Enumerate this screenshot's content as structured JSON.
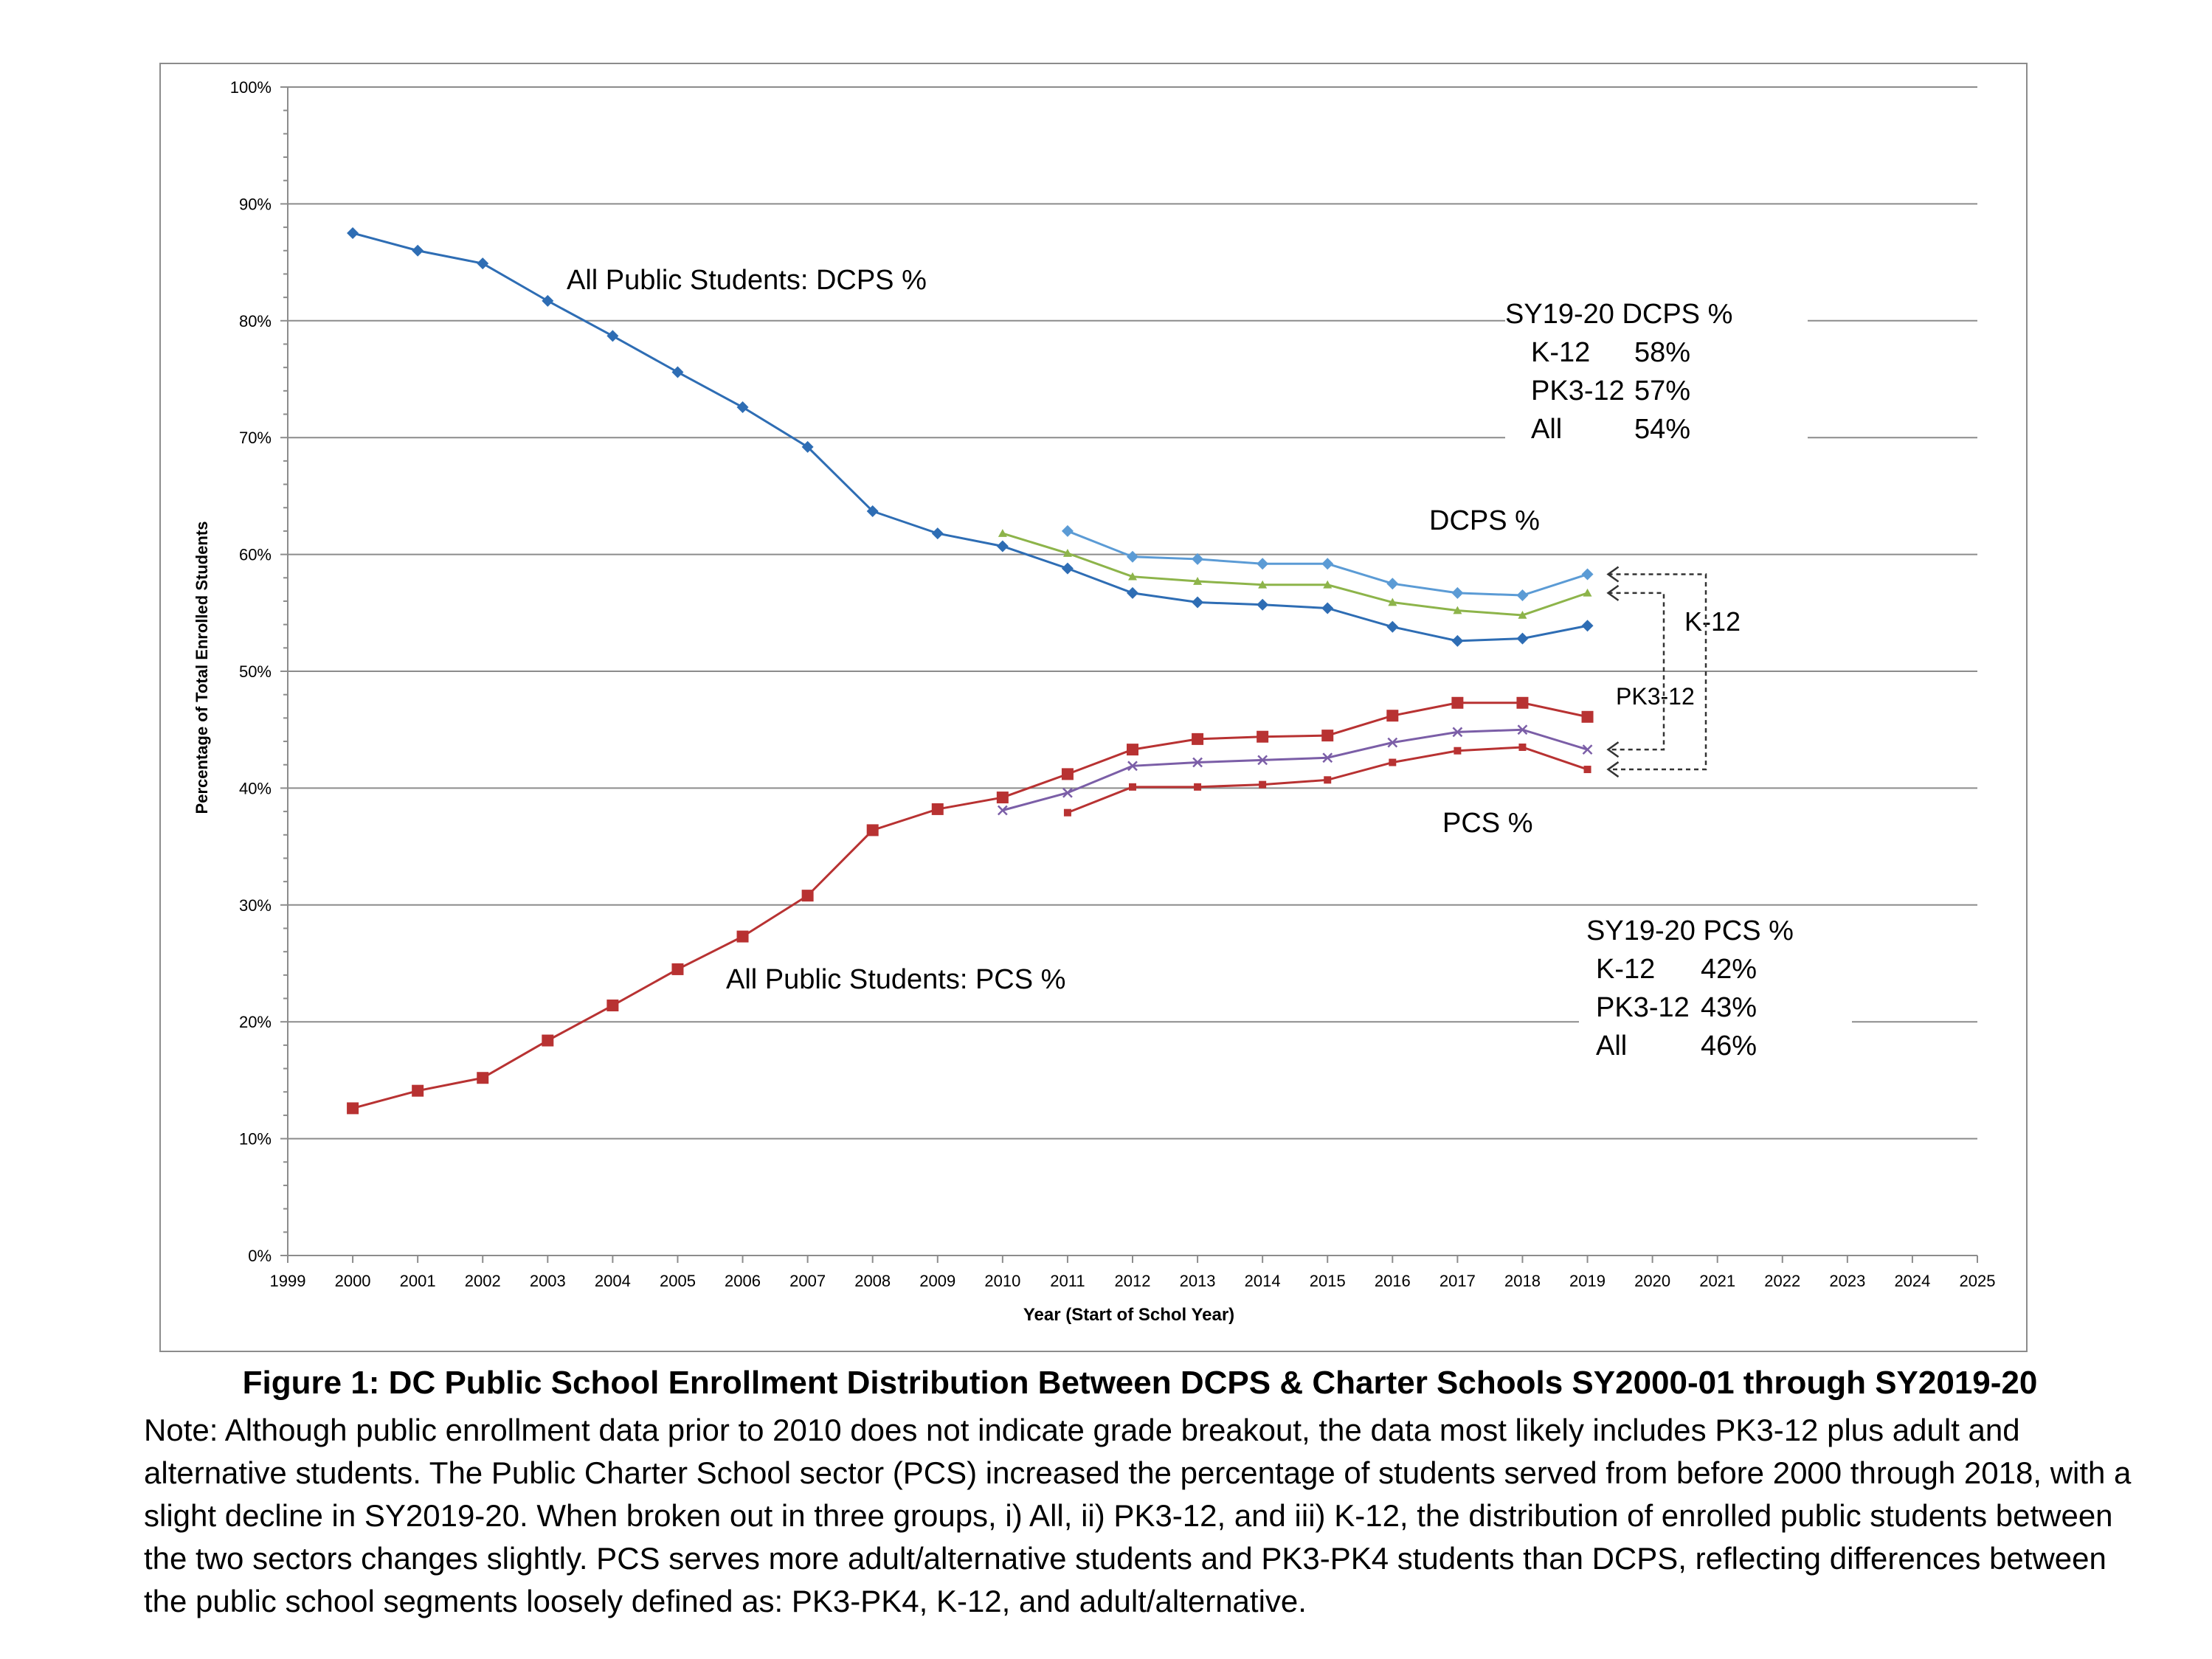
{
  "chart_data": {
    "type": "line",
    "xlabel": "Year (Start of Schol Year)",
    "ylabel": "Percentage of Total Enrolled Students",
    "xlim": [
      1999,
      2025
    ],
    "ylim": [
      0,
      100
    ],
    "x_ticks": [
      1999,
      2000,
      2001,
      2002,
      2003,
      2004,
      2005,
      2006,
      2007,
      2008,
      2009,
      2010,
      2011,
      2012,
      2013,
      2014,
      2015,
      2016,
      2017,
      2018,
      2019,
      2020,
      2021,
      2022,
      2023,
      2024,
      2025
    ],
    "y_ticks": [
      "0%",
      "10%",
      "20%",
      "30%",
      "40%",
      "50%",
      "60%",
      "70%",
      "80%",
      "90%",
      "100%"
    ],
    "grid": true,
    "series": [
      {
        "name": "DCPS All",
        "color": "#2e6db4",
        "marker": "diamond",
        "x": [
          2000,
          2001,
          2002,
          2003,
          2004,
          2005,
          2006,
          2007,
          2008,
          2009,
          2010,
          2011,
          2012,
          2013,
          2014,
          2015,
          2016,
          2017,
          2018,
          2019
        ],
        "values": [
          87.5,
          86,
          84.9,
          81.7,
          78.7,
          75.6,
          72.6,
          69.2,
          63.7,
          61.8,
          60.7,
          58.8,
          56.7,
          55.9,
          55.7,
          55.4,
          53.8,
          52.6,
          52.8,
          53.9
        ]
      },
      {
        "name": "DCPS PK3-12",
        "color": "#8db44a",
        "marker": "triangle",
        "x": [
          2010,
          2011,
          2012,
          2013,
          2014,
          2015,
          2016,
          2017,
          2018,
          2019
        ],
        "values": [
          61.8,
          60.1,
          58.1,
          57.7,
          57.4,
          57.4,
          55.9,
          55.2,
          54.8,
          56.7
        ]
      },
      {
        "name": "DCPS K-12",
        "color": "#5b9bd5",
        "marker": "diamond",
        "x": [
          2011,
          2012,
          2013,
          2014,
          2015,
          2016,
          2017,
          2018,
          2019
        ],
        "values": [
          62.0,
          59.8,
          59.6,
          59.2,
          59.2,
          57.5,
          56.7,
          56.5,
          58.3
        ]
      },
      {
        "name": "PCS All",
        "color": "#b83232",
        "marker": "square",
        "x": [
          2000,
          2001,
          2002,
          2003,
          2004,
          2005,
          2006,
          2007,
          2008,
          2009,
          2010,
          2011,
          2012,
          2013,
          2014,
          2015,
          2016,
          2017,
          2018,
          2019
        ],
        "values": [
          12.6,
          14.1,
          15.2,
          18.4,
          21.4,
          24.5,
          27.3,
          30.8,
          36.4,
          38.2,
          39.2,
          41.2,
          43.3,
          44.2,
          44.4,
          44.5,
          46.2,
          47.3,
          47.3,
          46.1
        ]
      },
      {
        "name": "PCS PK3-12",
        "color": "#7b5ea7",
        "marker": "x",
        "x": [
          2010,
          2011,
          2012,
          2013,
          2014,
          2015,
          2016,
          2017,
          2018,
          2019
        ],
        "values": [
          38.1,
          39.6,
          41.9,
          42.2,
          42.4,
          42.6,
          43.9,
          44.8,
          45.0,
          43.3
        ]
      },
      {
        "name": "PCS K-12",
        "color": "#b83232",
        "marker": "small-square",
        "x": [
          2011,
          2012,
          2013,
          2014,
          2015,
          2016,
          2017,
          2018,
          2019
        ],
        "values": [
          37.9,
          40.1,
          40.1,
          40.3,
          40.7,
          42.2,
          43.2,
          43.5,
          41.6
        ]
      }
    ],
    "annotations": {
      "dcps_all_label": "All Public Students: DCPS %",
      "pcs_all_label": "All Public Students: PCS %",
      "dcps_label": "DCPS %",
      "pcs_label": "PCS %",
      "k12_bracket": "K-12",
      "pk312_bracket": "PK3-12",
      "dcps_box": {
        "title": "SY19-20 DCPS %",
        "rows": [
          {
            "group": "K-12",
            "value": "58%"
          },
          {
            "group": "PK3-12",
            "value": "57%"
          },
          {
            "group": "All",
            "value": "54%"
          }
        ]
      },
      "pcs_box": {
        "title": "SY19-20 PCS %",
        "rows": [
          {
            "group": "K-12",
            "value": "42%"
          },
          {
            "group": "PK3-12",
            "value": "43%"
          },
          {
            "group": "All",
            "value": "46%"
          }
        ]
      }
    }
  },
  "caption": {
    "title": "Figure 1: DC Public School Enrollment Distribution Between DCPS & Charter Schools SY2000-01 through SY2019-20",
    "note": "Note: Although public enrollment data prior to 2010 does not indicate grade breakout, the data most likely includes PK3-12 plus adult and alternative students.  The Public Charter School sector (PCS) increased the percentage of students served from before 2000 through 2018, with a slight decline in SY2019-20.  When broken out in three groups, i) All, ii) PK3-12, and iii) K-12, the distribution of enrolled public students between the two sectors changes slightly.  PCS serves more adult/alternative students and PK3-PK4 students than DCPS, reflecting differences between the public school segments loosely defined as: PK3-PK4, K-12, and adult/alternative."
  }
}
